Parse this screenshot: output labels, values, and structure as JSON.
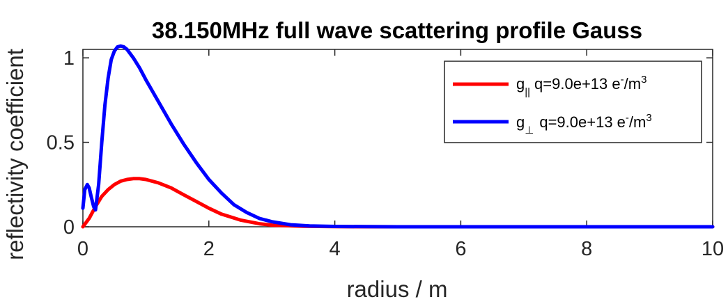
{
  "chart_data": {
    "type": "line",
    "title": "38.150MHz full wave scattering profile Gauss",
    "xlabel": "radius / m",
    "ylabel": "reflectivity coefficient",
    "xlim": [
      0,
      10
    ],
    "ylim": [
      0,
      1.05
    ],
    "xticks": [
      0,
      2,
      4,
      6,
      8,
      10
    ],
    "xtick_labels": [
      "0",
      "2",
      "4",
      "6",
      "8",
      "10"
    ],
    "yticks": [
      0,
      0.5,
      1
    ],
    "ytick_labels": [
      "0",
      "0.5",
      "1"
    ],
    "grid": false,
    "legend_position": "top-right",
    "series": [
      {
        "legend": {
          "g": "g",
          "subscript": "||",
          "text": "q=9.0e+13 e",
          "sup1": "-",
          "unit": "/m",
          "sup2": "3"
        },
        "color": "#ff0000",
        "x": [
          0,
          0.1,
          0.2,
          0.3,
          0.4,
          0.5,
          0.6,
          0.7,
          0.8,
          0.9,
          1.0,
          1.1,
          1.2,
          1.4,
          1.6,
          1.8,
          2.0,
          2.2,
          2.5,
          2.8,
          3.0,
          3.5,
          4.0,
          5.0,
          6.0,
          7.0,
          8.0,
          9.0,
          10.0
        ],
        "y": [
          0,
          0.05,
          0.12,
          0.18,
          0.22,
          0.25,
          0.27,
          0.28,
          0.285,
          0.285,
          0.28,
          0.27,
          0.26,
          0.23,
          0.19,
          0.15,
          0.11,
          0.075,
          0.04,
          0.018,
          0.01,
          0.003,
          0.001,
          0,
          0,
          0,
          0,
          0,
          0
        ]
      },
      {
        "legend": {
          "g": "g",
          "subscript": "⊥",
          "text": "q=9.0e+13 e",
          "sup1": "-",
          "unit": "/m",
          "sup2": "3"
        },
        "color": "#0000ff",
        "x": [
          0,
          0.03,
          0.07,
          0.1,
          0.13,
          0.17,
          0.2,
          0.25,
          0.3,
          0.35,
          0.4,
          0.45,
          0.5,
          0.55,
          0.6,
          0.65,
          0.7,
          0.8,
          0.9,
          1.0,
          1.2,
          1.4,
          1.6,
          1.8,
          2.0,
          2.2,
          2.4,
          2.6,
          2.8,
          3.0,
          3.3,
          3.6,
          4.0,
          4.5,
          5.0,
          6.0,
          7.0,
          8.0,
          9.0,
          10.0
        ],
        "y": [
          0.11,
          0.22,
          0.25,
          0.23,
          0.18,
          0.12,
          0.1,
          0.25,
          0.5,
          0.72,
          0.88,
          0.99,
          1.04,
          1.065,
          1.07,
          1.065,
          1.05,
          1.0,
          0.94,
          0.87,
          0.74,
          0.61,
          0.49,
          0.38,
          0.28,
          0.2,
          0.13,
          0.085,
          0.05,
          0.03,
          0.012,
          0.005,
          0.002,
          0.001,
          0,
          0,
          0,
          0,
          0,
          0
        ]
      }
    ]
  }
}
